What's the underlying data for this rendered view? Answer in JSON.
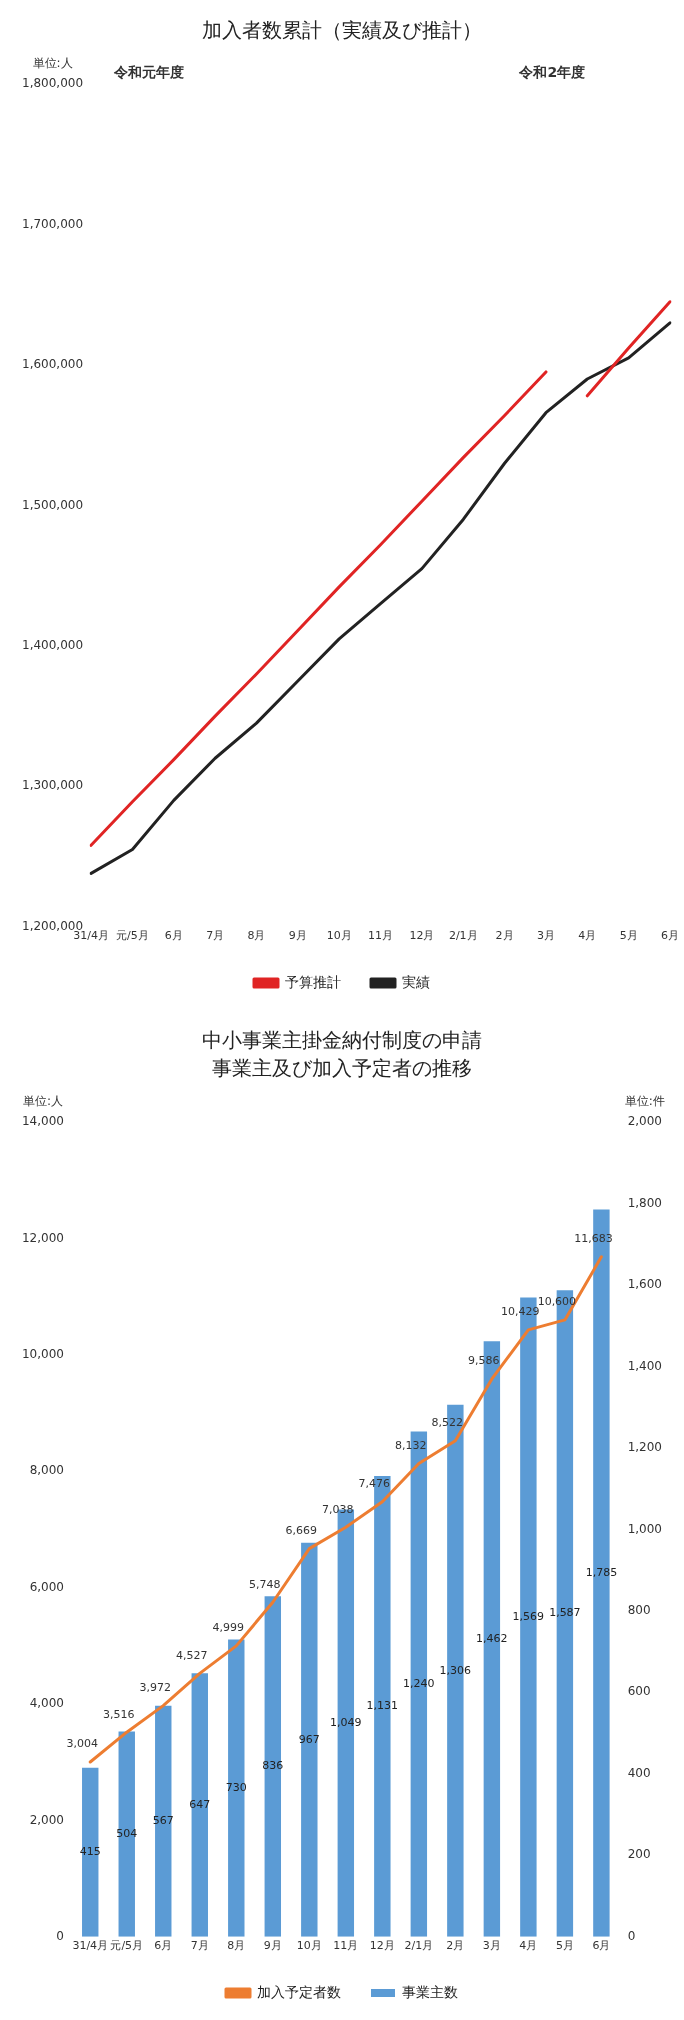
{
  "chart_data": [
    {
      "type": "line",
      "title": "加入者数累計（実績及び推計）",
      "ylabel": "単位:人",
      "annotations": [
        "令和元年度",
        "令和2年度"
      ],
      "categories": [
        "31/4月",
        "元/5月",
        "6月",
        "7月",
        "8月",
        "9月",
        "10月",
        "11月",
        "12月",
        "2/1月",
        "2月",
        "3月",
        "4月",
        "5月",
        "6月"
      ],
      "series": [
        {
          "name": "予算推計",
          "color": "#e02424",
          "values": [
            1258000,
            1289000,
            1319000,
            1350000,
            1380000,
            1411000,
            1442000,
            1472000,
            1503000,
            1534000,
            1564000,
            1595000,
            null,
            null,
            null
          ]
        },
        {
          "color": "#e02424",
          "values": [
            null,
            null,
            null,
            null,
            null,
            null,
            null,
            null,
            null,
            null,
            null,
            null,
            1578000,
            1612000,
            1645000
          ]
        },
        {
          "name": "実績",
          "color": "#222222",
          "values": [
            1238000,
            1255000,
            1290000,
            1320000,
            1345000,
            1375000,
            1405000,
            1430000,
            1455000,
            1490000,
            1530000,
            1566000,
            1590000,
            1605000,
            1630000
          ]
        }
      ],
      "ylim": [
        1200000,
        1800000
      ],
      "yticks": [
        {
          "value": 1200000,
          "label": "1,200,000"
        },
        {
          "value": 1300000,
          "label": "1,300,000"
        },
        {
          "value": 1400000,
          "label": "1,400,000"
        },
        {
          "value": 1500000,
          "label": "1,500,000"
        },
        {
          "value": 1600000,
          "label": "1,600,000"
        },
        {
          "value": 1700000,
          "label": "1,700,000"
        },
        {
          "value": 1800000,
          "label": "1,800,000"
        }
      ],
      "legend": "bottom"
    },
    {
      "type": "bar",
      "title": "中小事業主掛金納付制度の申請",
      "subtitle": "事業主及び加入予定者の推移",
      "ylabel": "単位:人",
      "y2label": "単位:件",
      "categories": [
        "31/4月",
        "元/5月",
        "6月",
        "7月",
        "8月",
        "9月",
        "10月",
        "11月",
        "12月",
        "2/1月",
        "2月",
        "3月",
        "4月",
        "5月",
        "6月"
      ],
      "series": [
        {
          "name": "事業主数",
          "axis": "y2",
          "color": "#5b9bd5",
          "values": [
            415,
            504,
            567,
            647,
            730,
            836,
            967,
            1049,
            1131,
            1240,
            1306,
            1462,
            1569,
            1587,
            1785
          ],
          "value_labels": [
            "415",
            "504",
            "567",
            "647",
            "730",
            "836",
            "967",
            "1,049",
            "1,131",
            "1,240",
            "1,306",
            "1,462",
            "1,569",
            "1,587",
            "1,785"
          ]
        },
        {
          "name": "加入予定者数",
          "type": "line",
          "color": "#ed7d31",
          "values": [
            3004,
            3516,
            3972,
            4527,
            4999,
            5748,
            6669,
            7038,
            7476,
            8132,
            8522,
            9586,
            10429,
            10600,
            11683
          ],
          "value_labels": [
            "3,004",
            "3,516",
            "3,972",
            "4,527",
            "4,999",
            "5,748",
            "6,669",
            "7,038",
            "7,476",
            "8,132",
            "8,522",
            "9,586",
            "10,429",
            "10,600",
            "11,683"
          ]
        }
      ],
      "ylim": [
        0,
        14000
      ],
      "yticks": [
        0,
        {
          "value": 2000,
          "label": "2,000"
        },
        {
          "value": 4000,
          "label": "4,000"
        },
        {
          "value": 6000,
          "label": "6,000"
        },
        {
          "value": 8000,
          "label": "8,000"
        },
        {
          "value": 10000,
          "label": "10,000"
        },
        {
          "value": 12000,
          "label": "12,000"
        },
        {
          "value": 14000,
          "label": "14,000"
        }
      ],
      "y2lim": [
        0,
        2000
      ],
      "y2ticks": [
        0,
        200,
        400,
        600,
        800,
        {
          "value": 1000,
          "label": "1,000"
        },
        {
          "value": 1200,
          "label": "1,200"
        },
        {
          "value": 1400,
          "label": "1,400"
        },
        {
          "value": 1600,
          "label": "1,600"
        },
        {
          "value": 1800,
          "label": "1,800"
        },
        {
          "value": 2000,
          "label": "2,000"
        }
      ],
      "legend": "bottom"
    }
  ]
}
